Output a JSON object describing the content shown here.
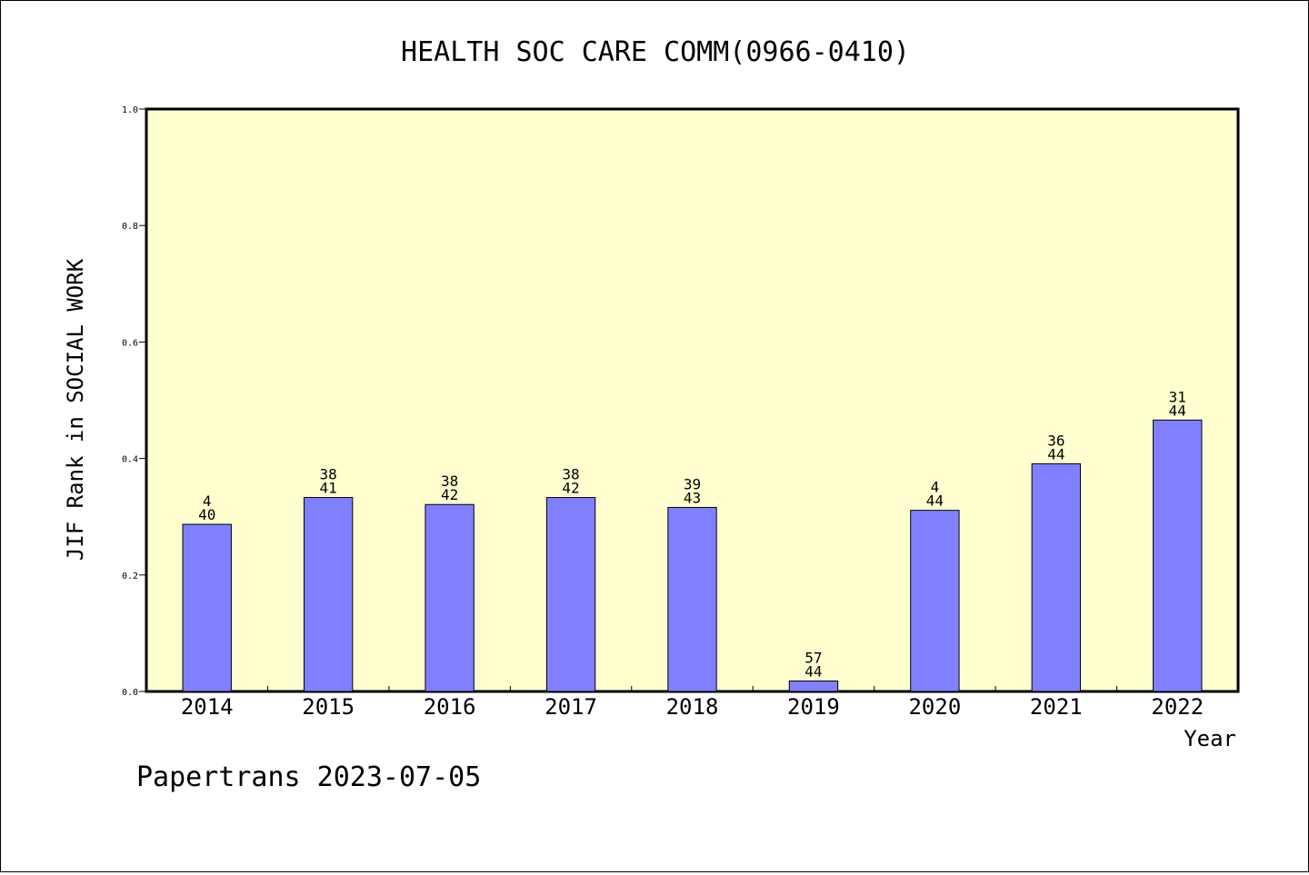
{
  "chart_data": {
    "type": "bar",
    "title": "HEALTH SOC CARE COMM(0966-0410)",
    "xlabel": "Year",
    "ylabel": "JIF Rank in SOCIAL WORK",
    "ylim": [
      0,
      1.0
    ],
    "yticks": [
      "0.0",
      "0.2",
      "0.4",
      "0.6",
      "0.8",
      "1.0"
    ],
    "grid": false,
    "categories": [
      "2014",
      "2015",
      "2016",
      "2017",
      "2018",
      "2019",
      "2020",
      "2021",
      "2022"
    ],
    "values": [
      0.287,
      0.333,
      0.321,
      0.333,
      0.316,
      0.018,
      0.311,
      0.391,
      0.466
    ],
    "labels_top": [
      "4",
      "38",
      "38",
      "38",
      "39",
      "57",
      "4",
      "36",
      "31"
    ],
    "labels_bottom": [
      "40",
      "41",
      "42",
      "42",
      "43",
      "44",
      "44",
      "44",
      "44"
    ],
    "colors": {
      "plot_background": "#ffffd0",
      "bar_fill": "#8080ff",
      "bar_stroke": "#000000",
      "axis": "#000000"
    }
  },
  "footer": {
    "text": "Papertrans 2023-07-05"
  }
}
